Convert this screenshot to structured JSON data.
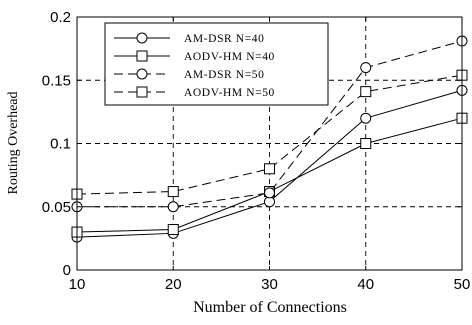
{
  "chart_data": {
    "type": "line",
    "xlabel": "Number of Connections",
    "ylabel": "Routing Overhead",
    "x": [
      10,
      20,
      30,
      40,
      50
    ],
    "xlim": [
      10,
      50
    ],
    "ylim": [
      0,
      0.2
    ],
    "xticks": [
      10,
      20,
      30,
      40,
      50
    ],
    "yticks": [
      0,
      0.05,
      0.1,
      0.15,
      0.2
    ],
    "xtick_labels": [
      "10",
      "20",
      "30",
      "40",
      "50"
    ],
    "ytick_labels": [
      "0",
      "0.05",
      "0.1",
      "0.15",
      "0.2"
    ],
    "grid": true,
    "legend_position": "top-left",
    "series": [
      {
        "name": "AM-DSR N=40",
        "marker": "circle",
        "line": "solid",
        "values": [
          0.026,
          0.029,
          0.054,
          0.12,
          0.142
        ]
      },
      {
        "name": "AODV-HM N=40",
        "marker": "square",
        "line": "solid",
        "values": [
          0.03,
          0.032,
          0.062,
          0.1,
          0.12
        ]
      },
      {
        "name": "AM-DSR N=50",
        "marker": "circle",
        "line": "dashed",
        "values": [
          0.05,
          0.05,
          0.061,
          0.16,
          0.181
        ]
      },
      {
        "name": "AODV-HM N=50",
        "marker": "square",
        "line": "dashed",
        "values": [
          0.06,
          0.062,
          0.08,
          0.141,
          0.154
        ]
      }
    ]
  }
}
